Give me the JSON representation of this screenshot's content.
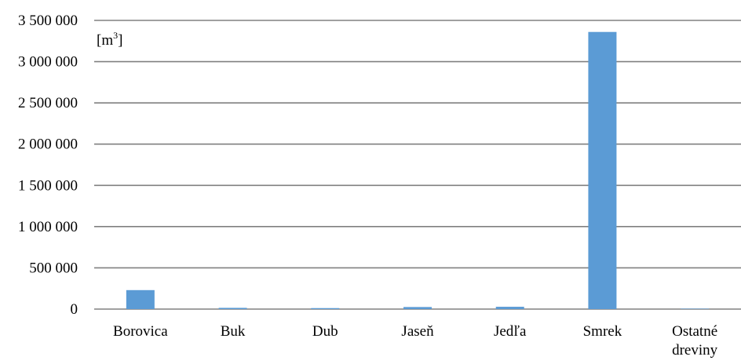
{
  "chart_data": {
    "type": "bar",
    "title": "",
    "xlabel": "",
    "ylabel": "",
    "unit_label": "[m3]",
    "unit_base": "[m",
    "unit_sup": "3",
    "unit_close": "]",
    "categories": [
      [
        "Borovica"
      ],
      [
        "Buk"
      ],
      [
        "Dub"
      ],
      [
        "Jaseň"
      ],
      [
        "Jedľa"
      ],
      [
        "Smrek"
      ],
      [
        "Ostatné",
        "dreviny"
      ]
    ],
    "values": [
      230000,
      15000,
      12000,
      25000,
      28000,
      3360000,
      5000
    ],
    "ylim": [
      0,
      3500000
    ],
    "yticks": [
      0,
      500000,
      1000000,
      1500000,
      2000000,
      2500000,
      3000000,
      3500000
    ],
    "ytick_labels": [
      "0",
      "500 000",
      "1 000 000",
      "1 500 000",
      "2 000 000",
      "2 500 000",
      "3 000 000",
      "3 500 000"
    ],
    "grid": true,
    "legend": "none",
    "colors": {
      "bar": "#5B9BD5",
      "grid": "#808080",
      "axis": "#808080"
    }
  }
}
